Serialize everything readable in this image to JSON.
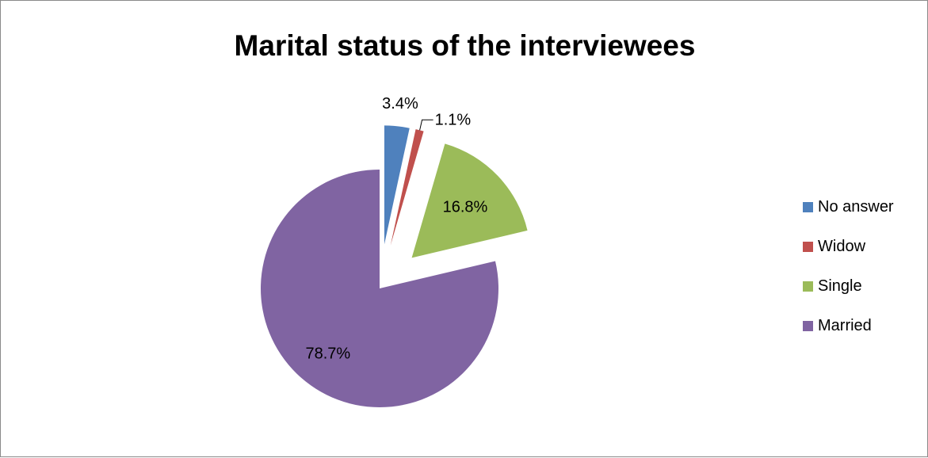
{
  "chart_data": {
    "type": "pie",
    "title": "Marital status of the interviewees",
    "slices": [
      {
        "name": "No answer",
        "value": 3.4,
        "label": "3.4%",
        "color": "#4F81BD"
      },
      {
        "name": "Widow",
        "value": 1.1,
        "label": "1.1%",
        "color": "#C0504D"
      },
      {
        "name": "Single",
        "value": 16.8,
        "label": "16.8%",
        "color": "#9BBB59"
      },
      {
        "name": "Married",
        "value": 78.7,
        "label": "78.7%",
        "color": "#8064A2"
      }
    ],
    "legend_position": "right",
    "exploded": true,
    "start_angle": "12 o'clock, clockwise"
  }
}
